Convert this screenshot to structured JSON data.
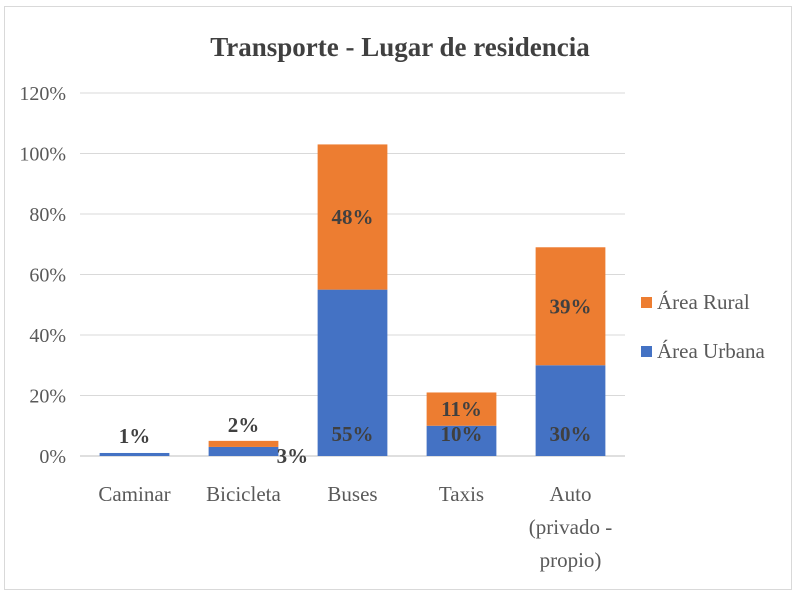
{
  "chart_data": {
    "type": "bar",
    "stacked": true,
    "title": "Transporte - Lugar de residencia",
    "categories": [
      [
        "Caminar"
      ],
      [
        "Bicicleta"
      ],
      [
        "Buses"
      ],
      [
        "Taxis"
      ],
      [
        "Auto",
        "(privado -",
        "propio)"
      ]
    ],
    "series": [
      {
        "name": "Área Urbana",
        "color": "#4472c4",
        "values": [
          1,
          3,
          55,
          10,
          30
        ],
        "labels": [
          "1%",
          "3%",
          "55%",
          "10%",
          "30%"
        ]
      },
      {
        "name": "Área Rural",
        "color": "#ed7d31",
        "values": [
          0,
          2,
          48,
          11,
          39
        ],
        "labels": [
          "",
          "2%",
          "48%",
          "11%",
          "39%"
        ]
      }
    ],
    "yticks": [
      "0%",
      "20%",
      "40%",
      "60%",
      "80%",
      "100%",
      "120%"
    ],
    "ylim": [
      0,
      120
    ],
    "grid": true,
    "legend": "right"
  }
}
